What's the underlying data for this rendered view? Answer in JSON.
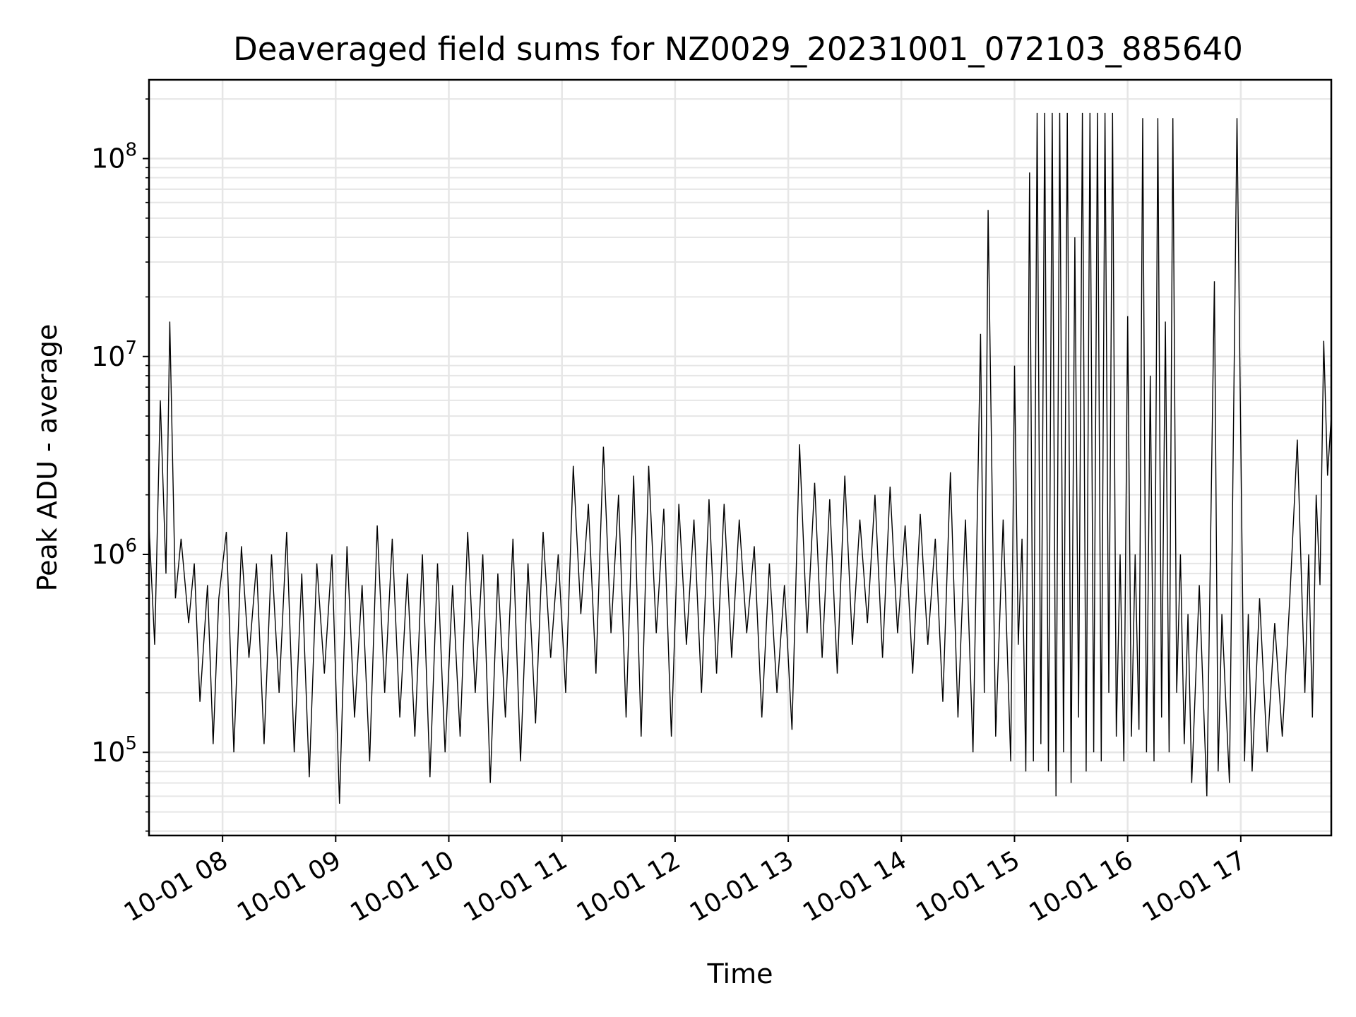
{
  "chart_data": {
    "type": "line",
    "title": "Deaveraged field sums for NZ0029_20231001_072103_885640",
    "xlabel": "Time",
    "ylabel": "Peak ADU - average",
    "yscale": "log",
    "grid": true,
    "xlim": [
      "2023-10-01 07:21",
      "2023-10-01 17:48"
    ],
    "ylim": [
      38000,
      250000000
    ],
    "x_ticks": [
      {
        "value": "2023-10-01 08:00",
        "label": "10-01 08"
      },
      {
        "value": "2023-10-01 09:00",
        "label": "10-01 09"
      },
      {
        "value": "2023-10-01 10:00",
        "label": "10-01 10"
      },
      {
        "value": "2023-10-01 11:00",
        "label": "10-01 11"
      },
      {
        "value": "2023-10-01 12:00",
        "label": "10-01 12"
      },
      {
        "value": "2023-10-01 13:00",
        "label": "10-01 13"
      },
      {
        "value": "2023-10-01 14:00",
        "label": "10-01 14"
      },
      {
        "value": "2023-10-01 15:00",
        "label": "10-01 15"
      },
      {
        "value": "2023-10-01 16:00",
        "label": "10-01 16"
      },
      {
        "value": "2023-10-01 17:00",
        "label": "10-01 17"
      }
    ],
    "y_ticks": [
      {
        "value": 100000,
        "base": "10",
        "exp": "5"
      },
      {
        "value": 1000000,
        "base": "10",
        "exp": "6"
      },
      {
        "value": 10000000,
        "base": "10",
        "exp": "7"
      },
      {
        "value": 100000000,
        "base": "10",
        "exp": "8"
      }
    ],
    "series": [
      {
        "color": "#000000",
        "x": [
          "2023-10-01 07:21",
          "2023-10-01 07:24",
          "2023-10-01 07:27",
          "2023-10-01 07:30",
          "2023-10-01 07:32",
          "2023-10-01 07:35",
          "2023-10-01 07:38",
          "2023-10-01 07:42",
          "2023-10-01 07:45",
          "2023-10-01 07:48",
          "2023-10-01 07:52",
          "2023-10-01 07:55",
          "2023-10-01 07:58",
          "2023-10-01 08:02",
          "2023-10-01 08:06",
          "2023-10-01 08:10",
          "2023-10-01 08:14",
          "2023-10-01 08:18",
          "2023-10-01 08:22",
          "2023-10-01 08:26",
          "2023-10-01 08:30",
          "2023-10-01 08:34",
          "2023-10-01 08:38",
          "2023-10-01 08:42",
          "2023-10-01 08:46",
          "2023-10-01 08:50",
          "2023-10-01 08:54",
          "2023-10-01 08:58",
          "2023-10-01 09:02",
          "2023-10-01 09:06",
          "2023-10-01 09:10",
          "2023-10-01 09:14",
          "2023-10-01 09:18",
          "2023-10-01 09:22",
          "2023-10-01 09:26",
          "2023-10-01 09:30",
          "2023-10-01 09:34",
          "2023-10-01 09:38",
          "2023-10-01 09:42",
          "2023-10-01 09:46",
          "2023-10-01 09:50",
          "2023-10-01 09:54",
          "2023-10-01 09:58",
          "2023-10-01 10:02",
          "2023-10-01 10:06",
          "2023-10-01 10:10",
          "2023-10-01 10:14",
          "2023-10-01 10:18",
          "2023-10-01 10:22",
          "2023-10-01 10:26",
          "2023-10-01 10:30",
          "2023-10-01 10:34",
          "2023-10-01 10:38",
          "2023-10-01 10:42",
          "2023-10-01 10:46",
          "2023-10-01 10:50",
          "2023-10-01 10:54",
          "2023-10-01 10:58",
          "2023-10-01 11:02",
          "2023-10-01 11:06",
          "2023-10-01 11:10",
          "2023-10-01 11:14",
          "2023-10-01 11:18",
          "2023-10-01 11:22",
          "2023-10-01 11:26",
          "2023-10-01 11:30",
          "2023-10-01 11:34",
          "2023-10-01 11:38",
          "2023-10-01 11:42",
          "2023-10-01 11:46",
          "2023-10-01 11:50",
          "2023-10-01 11:54",
          "2023-10-01 11:58",
          "2023-10-01 12:02",
          "2023-10-01 12:06",
          "2023-10-01 12:10",
          "2023-10-01 12:14",
          "2023-10-01 12:18",
          "2023-10-01 12:22",
          "2023-10-01 12:26",
          "2023-10-01 12:30",
          "2023-10-01 12:34",
          "2023-10-01 12:38",
          "2023-10-01 12:42",
          "2023-10-01 12:46",
          "2023-10-01 12:50",
          "2023-10-01 12:54",
          "2023-10-01 12:58",
          "2023-10-01 13:02",
          "2023-10-01 13:06",
          "2023-10-01 13:10",
          "2023-10-01 13:14",
          "2023-10-01 13:18",
          "2023-10-01 13:22",
          "2023-10-01 13:26",
          "2023-10-01 13:30",
          "2023-10-01 13:34",
          "2023-10-01 13:38",
          "2023-10-01 13:42",
          "2023-10-01 13:46",
          "2023-10-01 13:50",
          "2023-10-01 13:54",
          "2023-10-01 13:58",
          "2023-10-01 14:02",
          "2023-10-01 14:06",
          "2023-10-01 14:10",
          "2023-10-01 14:14",
          "2023-10-01 14:18",
          "2023-10-01 14:22",
          "2023-10-01 14:26",
          "2023-10-01 14:30",
          "2023-10-01 14:34",
          "2023-10-01 14:38",
          "2023-10-01 14:42",
          "2023-10-01 14:44",
          "2023-10-01 14:46",
          "2023-10-01 14:50",
          "2023-10-01 14:54",
          "2023-10-01 14:58",
          "2023-10-01 15:00",
          "2023-10-01 15:02",
          "2023-10-01 15:04",
          "2023-10-01 15:06",
          "2023-10-01 15:08",
          "2023-10-01 15:10",
          "2023-10-01 15:12",
          "2023-10-01 15:14",
          "2023-10-01 15:16",
          "2023-10-01 15:18",
          "2023-10-01 15:20",
          "2023-10-01 15:22",
          "2023-10-01 15:24",
          "2023-10-01 15:26",
          "2023-10-01 15:28",
          "2023-10-01 15:30",
          "2023-10-01 15:32",
          "2023-10-01 15:34",
          "2023-10-01 15:36",
          "2023-10-01 15:38",
          "2023-10-01 15:40",
          "2023-10-01 15:42",
          "2023-10-01 15:44",
          "2023-10-01 15:46",
          "2023-10-01 15:48",
          "2023-10-01 15:50",
          "2023-10-01 15:52",
          "2023-10-01 15:54",
          "2023-10-01 15:56",
          "2023-10-01 15:58",
          "2023-10-01 16:00",
          "2023-10-01 16:02",
          "2023-10-01 16:04",
          "2023-10-01 16:06",
          "2023-10-01 16:08",
          "2023-10-01 16:10",
          "2023-10-01 16:12",
          "2023-10-01 16:14",
          "2023-10-01 16:16",
          "2023-10-01 16:18",
          "2023-10-01 16:20",
          "2023-10-01 16:22",
          "2023-10-01 16:24",
          "2023-10-01 16:26",
          "2023-10-01 16:28",
          "2023-10-01 16:30",
          "2023-10-01 16:32",
          "2023-10-01 16:34",
          "2023-10-01 16:38",
          "2023-10-01 16:42",
          "2023-10-01 16:46",
          "2023-10-01 16:48",
          "2023-10-01 16:50",
          "2023-10-01 16:54",
          "2023-10-01 16:58",
          "2023-10-01 17:02",
          "2023-10-01 17:04",
          "2023-10-01 17:06",
          "2023-10-01 17:10",
          "2023-10-01 17:14",
          "2023-10-01 17:18",
          "2023-10-01 17:22",
          "2023-10-01 17:26",
          "2023-10-01 17:30",
          "2023-10-01 17:34",
          "2023-10-01 17:36",
          "2023-10-01 17:38",
          "2023-10-01 17:40",
          "2023-10-01 17:42",
          "2023-10-01 17:44",
          "2023-10-01 17:46",
          "2023-10-01 17:48"
        ],
        "y": [
          1400000,
          350000,
          6000000,
          800000,
          15000000,
          600000,
          1200000,
          450000,
          900000,
          180000,
          700000,
          110000,
          600000,
          1300000,
          100000,
          1100000,
          300000,
          900000,
          110000,
          1000000,
          200000,
          1300000,
          100000,
          800000,
          75000,
          900000,
          250000,
          1000000,
          55000,
          1100000,
          150000,
          700000,
          90000,
          1400000,
          200000,
          1200000,
          150000,
          800000,
          120000,
          1000000,
          75000,
          900000,
          100000,
          700000,
          120000,
          1300000,
          200000,
          1000000,
          70000,
          800000,
          150000,
          1200000,
          90000,
          900000,
          140000,
          1300000,
          300000,
          1000000,
          200000,
          2800000,
          500000,
          1800000,
          250000,
          3500000,
          400000,
          2000000,
          150000,
          2500000,
          120000,
          2800000,
          400000,
          1700000,
          120000,
          1800000,
          350000,
          1500000,
          200000,
          1900000,
          250000,
          1800000,
          300000,
          1500000,
          400000,
          1100000,
          150000,
          900000,
          200000,
          700000,
          130000,
          3600000,
          400000,
          2300000,
          300000,
          1900000,
          250000,
          2500000,
          350000,
          1500000,
          450000,
          2000000,
          300000,
          2200000,
          400000,
          1400000,
          250000,
          1600000,
          350000,
          1200000,
          180000,
          2600000,
          150000,
          1500000,
          100000,
          13000000,
          200000,
          55000000,
          120000,
          1500000,
          90000,
          9000000,
          350000,
          1200000,
          80000,
          85000000,
          90000,
          170000000,
          110000,
          170000000,
          80000,
          170000000,
          60000,
          170000000,
          100000,
          170000000,
          70000,
          40000000,
          150000,
          170000000,
          80000,
          170000000,
          100000,
          170000000,
          90000,
          170000000,
          200000,
          170000000,
          120000,
          1000000,
          90000,
          16000000,
          120000,
          1000000,
          130000,
          160000000,
          100000,
          8000000,
          90000,
          160000000,
          150000,
          15000000,
          100000,
          160000000,
          200000,
          1000000,
          110000,
          500000,
          70000,
          700000,
          60000,
          24000000,
          80000,
          500000,
          70000,
          160000000,
          90000,
          500000,
          80000,
          600000,
          100000,
          450000,
          120000,
          600000,
          3800000,
          200000,
          1000000,
          150000,
          2000000,
          700000,
          12000000,
          2500000,
          5000000
        ]
      }
    ]
  }
}
